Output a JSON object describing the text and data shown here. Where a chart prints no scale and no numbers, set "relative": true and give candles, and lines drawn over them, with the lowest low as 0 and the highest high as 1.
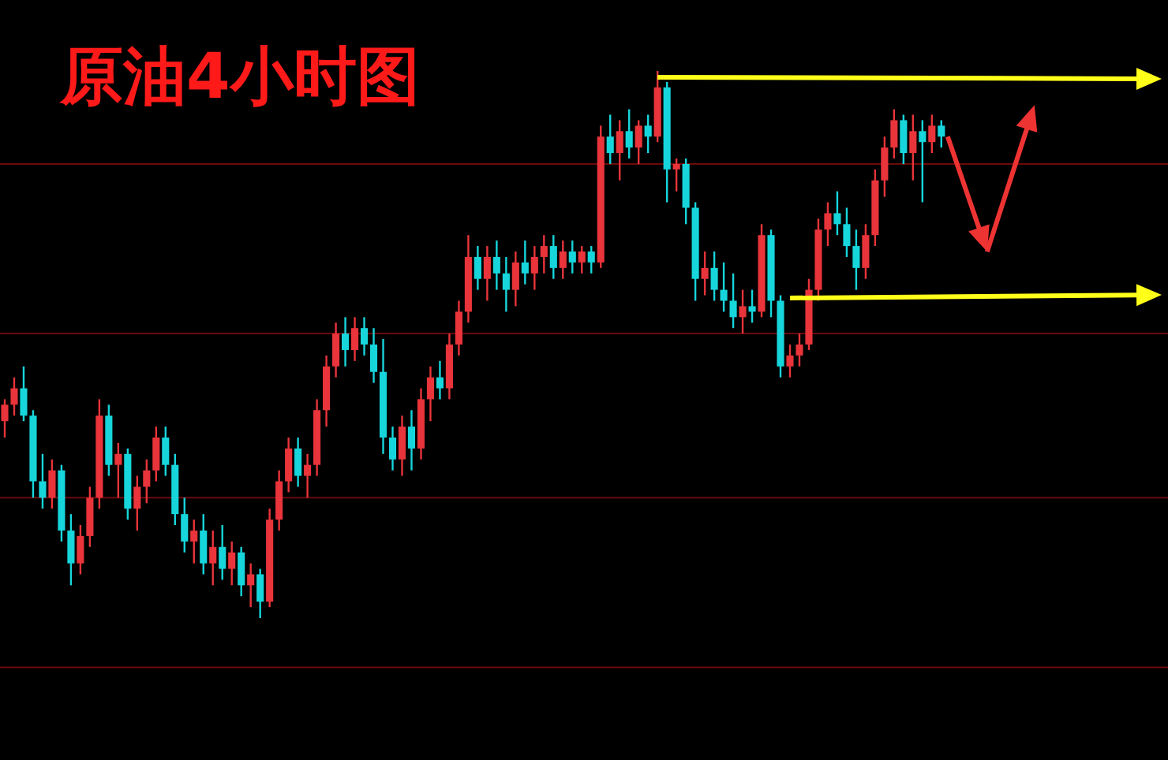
{
  "chart_data": {
    "type": "candlestick",
    "title": "原油4小时图",
    "relative": true,
    "categories": [
      null,
      null,
      null,
      null,
      null,
      null,
      null,
      null,
      null,
      null,
      null,
      null,
      null,
      null,
      null,
      null,
      null,
      null,
      null,
      null,
      null,
      null,
      null,
      null,
      null,
      null,
      null,
      null,
      null,
      null,
      null,
      null,
      null,
      null,
      null,
      null,
      null,
      null,
      null,
      null,
      null,
      null,
      null,
      null,
      null,
      null,
      null,
      null,
      null,
      null,
      null,
      null,
      null,
      null,
      null,
      null,
      null,
      null,
      null,
      null,
      null,
      null,
      null,
      null,
      null,
      null,
      null,
      null,
      null,
      null,
      null,
      null,
      null,
      null,
      null,
      null,
      null,
      null,
      null,
      null,
      null,
      null,
      null,
      null,
      null,
      null,
      null,
      null,
      null,
      null,
      null,
      null,
      null,
      null,
      null,
      null,
      null,
      null,
      null,
      null
    ],
    "ohlc": [
      [
        0.36,
        0.4,
        0.33,
        0.39
      ],
      [
        0.39,
        0.44,
        0.37,
        0.42
      ],
      [
        0.42,
        0.46,
        0.36,
        0.37
      ],
      [
        0.37,
        0.38,
        0.22,
        0.25
      ],
      [
        0.25,
        0.3,
        0.2,
        0.22
      ],
      [
        0.22,
        0.29,
        0.2,
        0.27
      ],
      [
        0.27,
        0.28,
        0.14,
        0.16
      ],
      [
        0.16,
        0.19,
        0.06,
        0.1
      ],
      [
        0.1,
        0.17,
        0.08,
        0.15
      ],
      [
        0.15,
        0.24,
        0.13,
        0.22
      ],
      [
        0.22,
        0.4,
        0.2,
        0.37
      ],
      [
        0.37,
        0.39,
        0.26,
        0.28
      ],
      [
        0.28,
        0.32,
        0.22,
        0.3
      ],
      [
        0.3,
        0.31,
        0.18,
        0.2
      ],
      [
        0.2,
        0.26,
        0.16,
        0.24
      ],
      [
        0.24,
        0.29,
        0.21,
        0.27
      ],
      [
        0.27,
        0.35,
        0.25,
        0.33
      ],
      [
        0.33,
        0.35,
        0.26,
        0.28
      ],
      [
        0.28,
        0.3,
        0.17,
        0.19
      ],
      [
        0.19,
        0.22,
        0.12,
        0.14
      ],
      [
        0.14,
        0.18,
        0.1,
        0.16
      ],
      [
        0.16,
        0.19,
        0.08,
        0.1
      ],
      [
        0.1,
        0.16,
        0.06,
        0.13
      ],
      [
        0.13,
        0.17,
        0.07,
        0.09
      ],
      [
        0.09,
        0.14,
        0.06,
        0.12
      ],
      [
        0.12,
        0.13,
        0.04,
        0.06
      ],
      [
        0.06,
        0.1,
        0.02,
        0.08
      ],
      [
        0.08,
        0.09,
        0.0,
        0.03
      ],
      [
        0.03,
        0.2,
        0.02,
        0.18
      ],
      [
        0.18,
        0.27,
        0.16,
        0.25
      ],
      [
        0.25,
        0.33,
        0.23,
        0.31
      ],
      [
        0.31,
        0.33,
        0.24,
        0.26
      ],
      [
        0.26,
        0.3,
        0.22,
        0.28
      ],
      [
        0.28,
        0.4,
        0.26,
        0.38
      ],
      [
        0.38,
        0.48,
        0.35,
        0.46
      ],
      [
        0.46,
        0.54,
        0.44,
        0.52
      ],
      [
        0.52,
        0.55,
        0.46,
        0.49
      ],
      [
        0.49,
        0.55,
        0.47,
        0.53
      ],
      [
        0.53,
        0.55,
        0.48,
        0.5
      ],
      [
        0.5,
        0.53,
        0.43,
        0.45
      ],
      [
        0.45,
        0.51,
        0.3,
        0.33
      ],
      [
        0.33,
        0.35,
        0.27,
        0.29
      ],
      [
        0.29,
        0.37,
        0.26,
        0.35
      ],
      [
        0.35,
        0.38,
        0.27,
        0.31
      ],
      [
        0.31,
        0.42,
        0.29,
        0.4
      ],
      [
        0.4,
        0.46,
        0.36,
        0.44
      ],
      [
        0.44,
        0.47,
        0.4,
        0.42
      ],
      [
        0.42,
        0.52,
        0.4,
        0.5
      ],
      [
        0.5,
        0.58,
        0.48,
        0.56
      ],
      [
        0.56,
        0.7,
        0.54,
        0.66
      ],
      [
        0.66,
        0.68,
        0.6,
        0.62
      ],
      [
        0.62,
        0.68,
        0.58,
        0.66
      ],
      [
        0.66,
        0.69,
        0.6,
        0.63
      ],
      [
        0.63,
        0.66,
        0.56,
        0.6
      ],
      [
        0.6,
        0.67,
        0.57,
        0.65
      ],
      [
        0.65,
        0.69,
        0.61,
        0.63
      ],
      [
        0.63,
        0.68,
        0.6,
        0.66
      ],
      [
        0.66,
        0.7,
        0.63,
        0.68
      ],
      [
        0.68,
        0.7,
        0.62,
        0.64
      ],
      [
        0.64,
        0.69,
        0.62,
        0.67
      ],
      [
        0.67,
        0.69,
        0.63,
        0.65
      ],
      [
        0.65,
        0.68,
        0.63,
        0.67
      ],
      [
        0.67,
        0.68,
        0.63,
        0.65
      ],
      [
        0.65,
        0.9,
        0.64,
        0.88
      ],
      [
        0.88,
        0.92,
        0.83,
        0.85
      ],
      [
        0.85,
        0.91,
        0.8,
        0.89
      ],
      [
        0.89,
        0.93,
        0.84,
        0.86
      ],
      [
        0.86,
        0.91,
        0.83,
        0.9
      ],
      [
        0.9,
        0.92,
        0.85,
        0.88
      ],
      [
        0.88,
        1.0,
        0.87,
        0.97
      ],
      [
        0.97,
        0.98,
        0.76,
        0.82
      ],
      [
        0.82,
        0.84,
        0.78,
        0.83
      ],
      [
        0.83,
        0.84,
        0.72,
        0.75
      ],
      [
        0.75,
        0.76,
        0.58,
        0.62
      ],
      [
        0.62,
        0.67,
        0.59,
        0.64
      ],
      [
        0.64,
        0.67,
        0.58,
        0.6
      ],
      [
        0.6,
        0.65,
        0.56,
        0.58
      ],
      [
        0.58,
        0.63,
        0.53,
        0.55
      ],
      [
        0.55,
        0.6,
        0.52,
        0.57
      ],
      [
        0.57,
        0.6,
        0.54,
        0.56
      ],
      [
        0.56,
        0.72,
        0.55,
        0.7
      ],
      [
        0.7,
        0.71,
        0.55,
        0.58
      ],
      [
        0.58,
        0.59,
        0.44,
        0.46
      ],
      [
        0.46,
        0.5,
        0.44,
        0.48
      ],
      [
        0.48,
        0.52,
        0.46,
        0.5
      ],
      [
        0.5,
        0.62,
        0.49,
        0.6
      ],
      [
        0.6,
        0.73,
        0.58,
        0.71
      ],
      [
        0.71,
        0.76,
        0.68,
        0.74
      ],
      [
        0.74,
        0.78,
        0.7,
        0.72
      ],
      [
        0.72,
        0.75,
        0.66,
        0.68
      ],
      [
        0.68,
        0.71,
        0.6,
        0.64
      ],
      [
        0.64,
        0.72,
        0.62,
        0.7
      ],
      [
        0.7,
        0.82,
        0.68,
        0.8
      ],
      [
        0.8,
        0.88,
        0.77,
        0.86
      ],
      [
        0.86,
        0.93,
        0.84,
        0.91
      ],
      [
        0.91,
        0.92,
        0.83,
        0.85
      ],
      [
        0.85,
        0.92,
        0.8,
        0.89
      ],
      [
        0.89,
        0.91,
        0.76,
        0.87
      ],
      [
        0.87,
        0.92,
        0.85,
        0.9
      ],
      [
        0.9,
        0.91,
        0.86,
        0.88
      ]
    ],
    "ref_lines": [
      {
        "axis": "y",
        "value": 0.83,
        "color": "#6b0a0a"
      },
      {
        "axis": "y",
        "value": 0.52,
        "color": "#6b0a0a"
      },
      {
        "axis": "y",
        "value": 0.22,
        "color": "#6b0a0a"
      },
      {
        "axis": "y",
        "value": -0.09,
        "color": "#6b0a0a"
      }
    ]
  }
}
